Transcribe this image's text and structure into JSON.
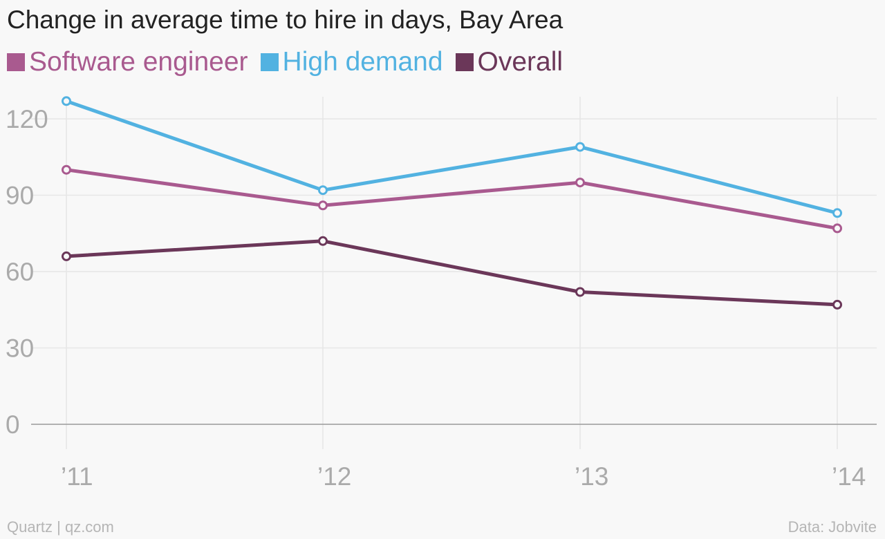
{
  "colors": {
    "software": "#a95a8f",
    "high_demand": "#52b2e1",
    "overall": "#6b3759",
    "grid": "#e6e6e6",
    "axis": "#999999",
    "tick_text": "#aaaaaa",
    "background": "#f8f8f8"
  },
  "chart_data": {
    "type": "line",
    "title": "Change in average time to hire in days, Bay Area",
    "xlabel": "",
    "ylabel": "",
    "categories": [
      "’11",
      "’12",
      "’13",
      "’14"
    ],
    "ylim": [
      0,
      130
    ],
    "yticks": [
      0,
      30,
      60,
      90,
      120
    ],
    "grid": true,
    "legend_placement": "top-left",
    "series": [
      {
        "name": "Software engineer",
        "color": "#a95a8f",
        "values": [
          100,
          86,
          95,
          77
        ]
      },
      {
        "name": "High demand",
        "color": "#52b2e1",
        "values": [
          127,
          92,
          109,
          83
        ]
      },
      {
        "name": "Overall",
        "color": "#6b3759",
        "values": [
          66,
          72,
          52,
          47
        ]
      }
    ]
  },
  "footer": {
    "source_left": "Quartz | qz.com",
    "source_right": "Data: Jobvite"
  }
}
